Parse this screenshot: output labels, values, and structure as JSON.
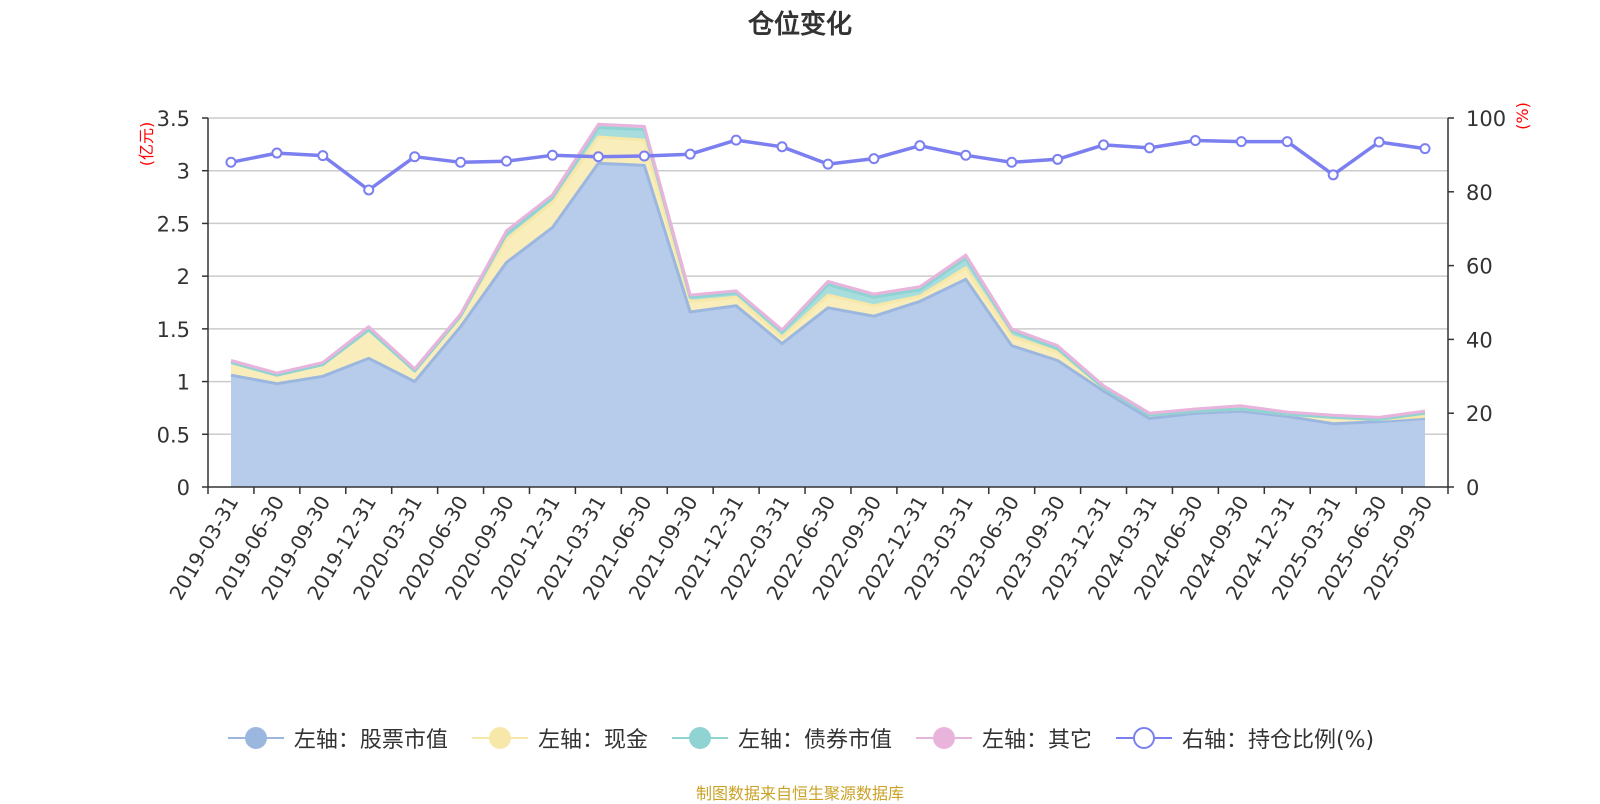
{
  "chart_data": {
    "type": "area",
    "title": "仓位变化",
    "source": "制图数据来自恒生聚源数据库",
    "y_left_unit": "(亿元)",
    "y_right_unit": "(%)",
    "y_left_range": [
      0,
      3.5
    ],
    "y_left_ticks": [
      "0",
      "0.5",
      "1",
      "1.5",
      "2",
      "2.5",
      "3",
      "3.5"
    ],
    "y_right_range": [
      0,
      100
    ],
    "y_right_ticks": [
      "0",
      "20",
      "40",
      "60",
      "80",
      "100"
    ],
    "grid": true,
    "legend_position": "bottom",
    "categories": [
      "2019-03-31",
      "2019-06-30",
      "2019-09-30",
      "2019-12-31",
      "2020-03-31",
      "2020-06-30",
      "2020-09-30",
      "2020-12-31",
      "2021-03-31",
      "2021-06-30",
      "2021-09-30",
      "2021-12-31",
      "2022-03-31",
      "2022-06-30",
      "2022-09-30",
      "2022-12-31",
      "2023-03-31",
      "2023-06-30",
      "2023-09-30",
      "2023-12-31",
      "2024-03-31",
      "2024-06-30",
      "2024-09-30",
      "2024-12-31",
      "2025-03-31",
      "2025-06-30",
      "2025-09-30"
    ],
    "series": [
      {
        "name": "左轴：股票市值",
        "axis": "left",
        "kind": "stacked-area",
        "color": "#9bb7e0",
        "fill": "#b7cbea",
        "values": [
          1.06,
          0.98,
          1.05,
          1.22,
          1.0,
          1.52,
          2.13,
          2.46,
          3.07,
          3.05,
          1.66,
          1.72,
          1.36,
          1.7,
          1.62,
          1.76,
          1.97,
          1.34,
          1.2,
          0.91,
          0.65,
          0.7,
          0.72,
          0.67,
          0.6,
          0.62,
          0.65
        ]
      },
      {
        "name": "左轴：现金",
        "axis": "left",
        "kind": "stacked-area",
        "color": "#f7e7a8",
        "fill": "#f9edbb",
        "values": [
          0.12,
          0.08,
          0.11,
          0.27,
          0.1,
          0.1,
          0.22,
          0.24,
          0.25,
          0.24,
          0.1,
          0.08,
          0.06,
          0.12,
          0.1,
          0.05,
          0.11,
          0.09,
          0.08,
          0.03,
          0.03,
          0.02,
          0.02,
          0.02,
          0.06,
          0.02,
          0.02
        ]
      },
      {
        "name": "左轴：债券市值",
        "axis": "left",
        "kind": "stacked-area",
        "color": "#8fd3d3",
        "fill": "#a8dddd",
        "values": [
          0.0,
          0.0,
          0.0,
          0.0,
          0.0,
          0.0,
          0.05,
          0.04,
          0.09,
          0.1,
          0.04,
          0.04,
          0.05,
          0.1,
          0.08,
          0.06,
          0.09,
          0.05,
          0.03,
          0.0,
          0.0,
          0.0,
          0.0,
          0.0,
          0.0,
          0.0,
          0.03
        ]
      },
      {
        "name": "左轴：其它",
        "axis": "left",
        "kind": "stacked-area",
        "color": "#e8b4dc",
        "fill": "#f0c7e6",
        "values": [
          0.02,
          0.02,
          0.02,
          0.03,
          0.02,
          0.02,
          0.03,
          0.03,
          0.03,
          0.03,
          0.02,
          0.02,
          0.02,
          0.03,
          0.03,
          0.03,
          0.03,
          0.02,
          0.03,
          0.02,
          0.02,
          0.02,
          0.03,
          0.02,
          0.02,
          0.02,
          0.02
        ]
      },
      {
        "name": "右轴：持仓比例(%)",
        "axis": "right",
        "kind": "line",
        "color": "#7b7ff0",
        "values": [
          88.0,
          90.5,
          89.8,
          80.5,
          89.5,
          88.0,
          88.3,
          89.9,
          89.5,
          89.7,
          90.2,
          94.0,
          92.2,
          87.5,
          89.0,
          92.5,
          89.9,
          88.0,
          88.8,
          92.7,
          91.9,
          93.9,
          93.6,
          93.6,
          84.6,
          93.5,
          91.7
        ]
      }
    ]
  }
}
